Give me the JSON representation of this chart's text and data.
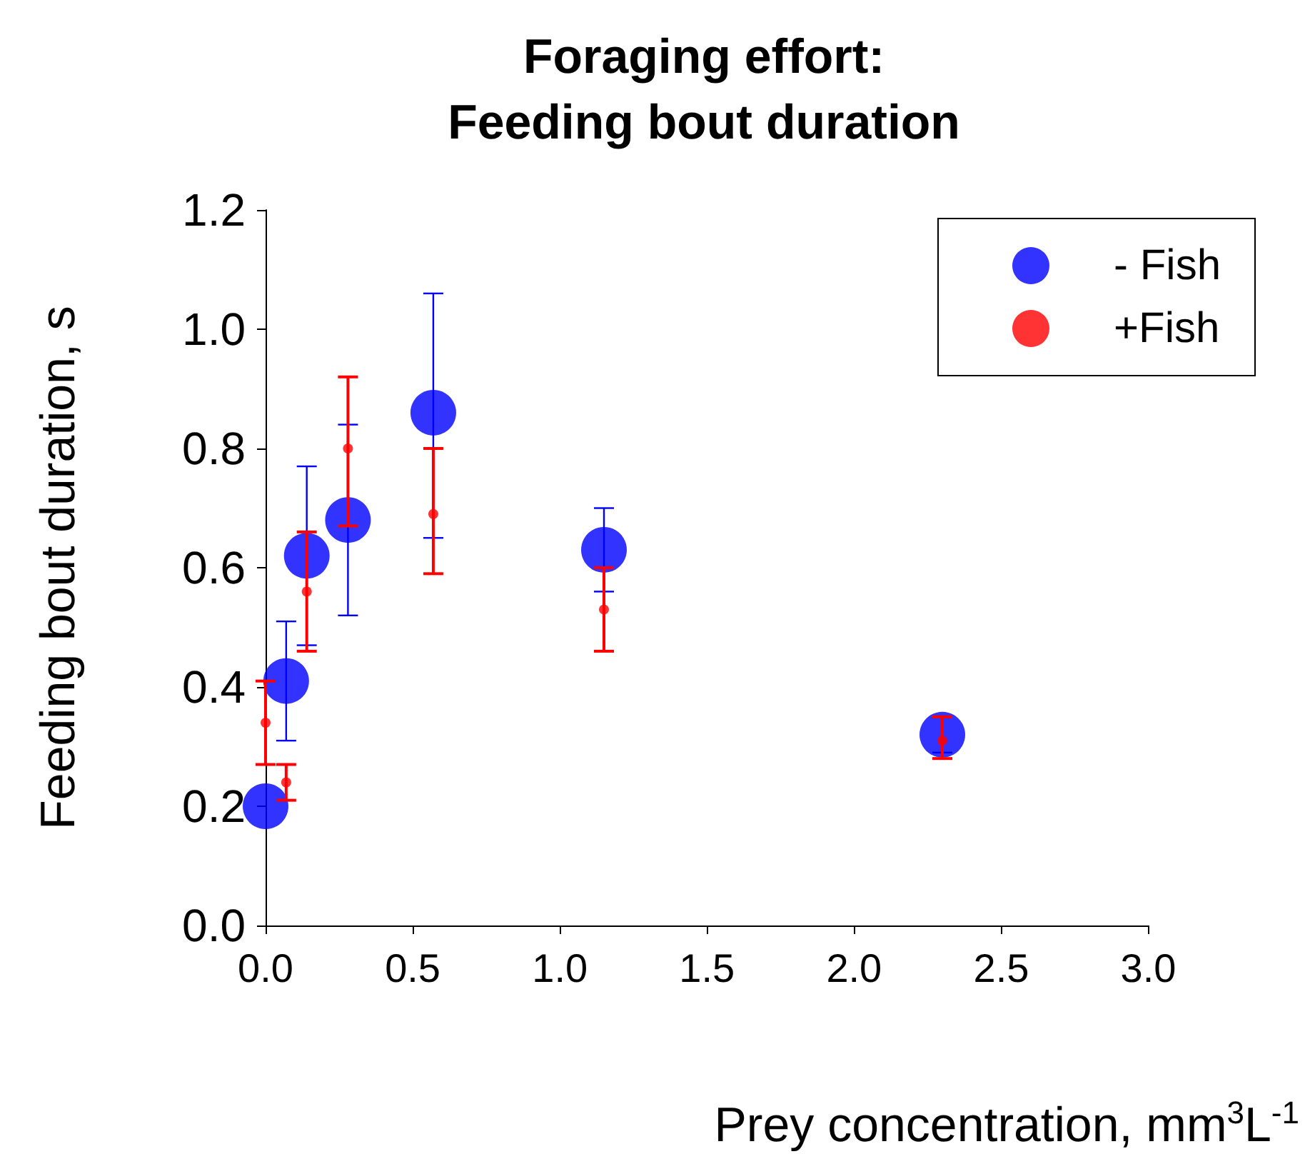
{
  "chart_data": {
    "type": "scatter",
    "title": "Foraging effort:\nFeeding bout duration",
    "xlabel": "Prey concentration, mm$^{3}$L$^{-1}$",
    "ylabel": "Feeding bout duration, s",
    "x": [
      0,
      0.07,
      0.14,
      0.28,
      0.57,
      1.15,
      2.3
    ],
    "series": [
      {
        "name": "- Fish",
        "color": "#0000ff",
        "marker": "circle",
        "values": [
          0.2,
          0.41,
          0.62,
          0.68,
          0.86,
          0.63,
          0.32
        ],
        "errors": [
          null,
          [
            0.31,
            0.51
          ],
          [
            0.47,
            0.77
          ],
          [
            0.52,
            0.84
          ],
          [
            0.65,
            1.06
          ],
          [
            0.56,
            0.7
          ],
          [
            0.29,
            0.35
          ]
        ]
      },
      {
        "name": "+Fish",
        "color": "#ff0000",
        "marker": "circle",
        "values": [
          0.34,
          0.24,
          0.56,
          0.8,
          0.69,
          0.53,
          0.31
        ],
        "errors": [
          [
            0.27,
            0.41
          ],
          [
            0.21,
            0.27
          ],
          [
            0.46,
            0.66
          ],
          [
            0.67,
            0.92
          ],
          [
            0.59,
            0.8
          ],
          [
            0.46,
            0.6
          ],
          [
            0.28,
            0.35
          ]
        ]
      }
    ],
    "xlim": [
      0,
      3
    ],
    "ylim": [
      0,
      1.2
    ],
    "xticks": [
      {
        "value": 0,
        "label": "0.0"
      },
      0.5,
      {
        "value": 1,
        "label": "1.0"
      },
      1.5,
      {
        "value": 2,
        "label": "2.0"
      },
      2.5,
      {
        "value": 3,
        "label": "3.0"
      }
    ],
    "yticks": [
      {
        "value": 0,
        "label": "0.0"
      },
      0.2,
      0.4,
      0.6,
      0.8,
      {
        "value": 1,
        "label": "1.0"
      },
      1.2
    ],
    "legend": "top right"
  }
}
